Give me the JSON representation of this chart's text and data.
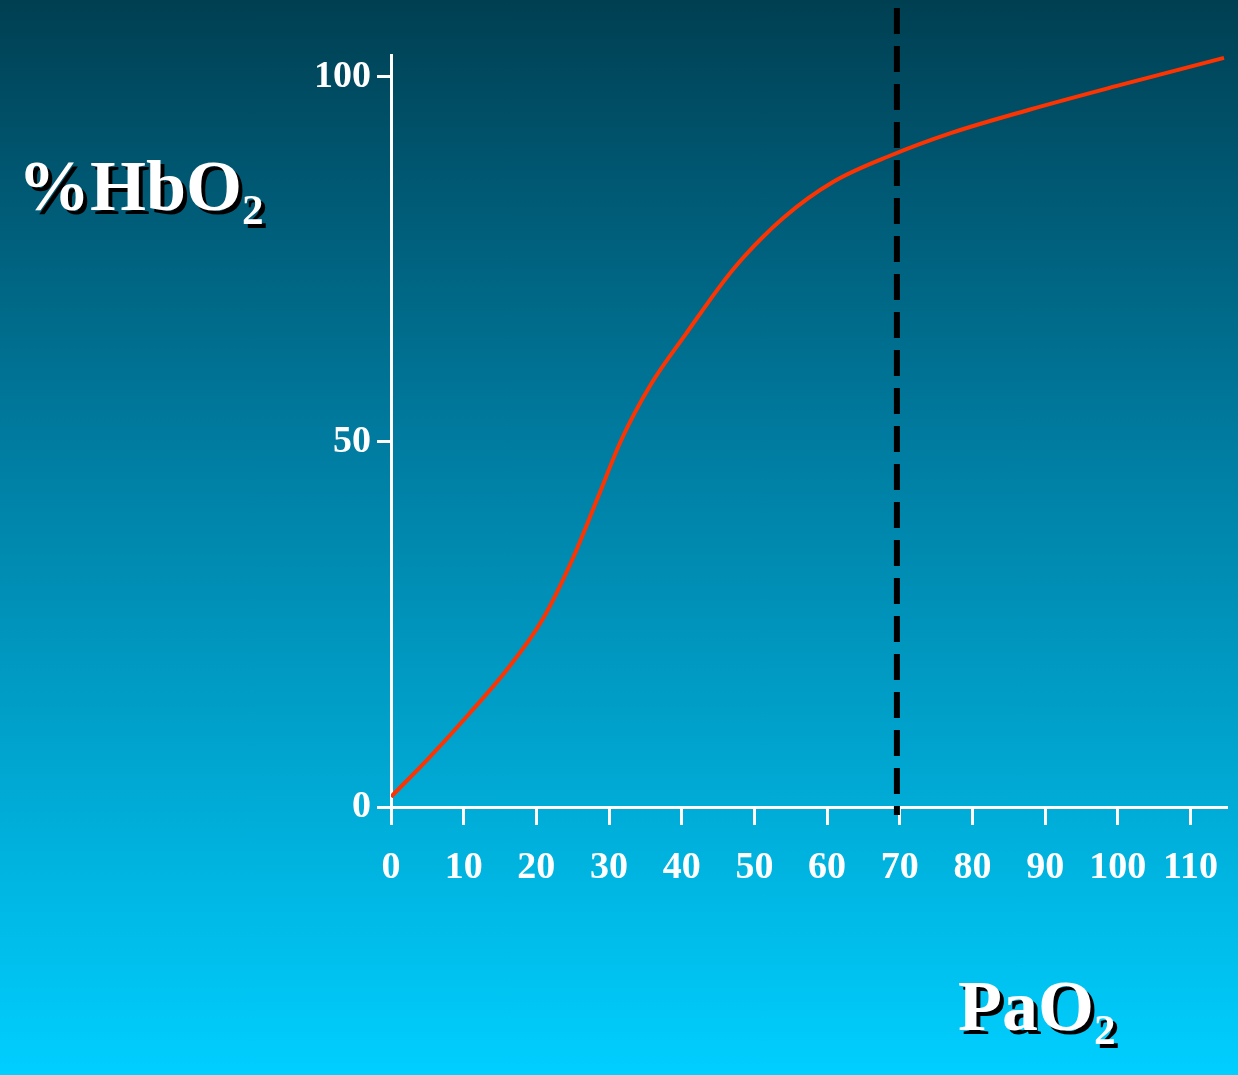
{
  "chart_data": {
    "type": "line",
    "xlabel": "PaO₂",
    "ylabel": "%HbO₂",
    "x": [
      0,
      5.3,
      10.7,
      16.1,
      20.8,
      24.9,
      28.3,
      31.7,
      35.7,
      40.5,
      47.2,
      54,
      60.8,
      68.9,
      77,
      87.8,
      100,
      114.6
    ],
    "series": [
      {
        "color": "#ff3300",
        "values": [
          1.4,
          6.8,
          12.7,
          19,
          25.6,
          33.8,
          42,
          50.3,
          57.8,
          64.7,
          73.8,
          80.7,
          85.6,
          89.3,
          92.3,
          95.5,
          98.8,
          102.6
        ]
      }
    ],
    "xlim": [
      0,
      115
    ],
    "xticks": [
      0,
      10,
      20,
      30,
      40,
      50,
      60,
      70,
      80,
      90,
      100,
      110
    ],
    "ylim": [
      0,
      103
    ],
    "yticks": [
      0,
      50,
      100
    ],
    "ref_lines": [
      {
        "axis": "x",
        "value": 69.6,
        "color": "#000000",
        "line_style": "dashed"
      }
    ],
    "grid": false,
    "legend": false,
    "marker": "none",
    "line_style": "solid"
  }
}
